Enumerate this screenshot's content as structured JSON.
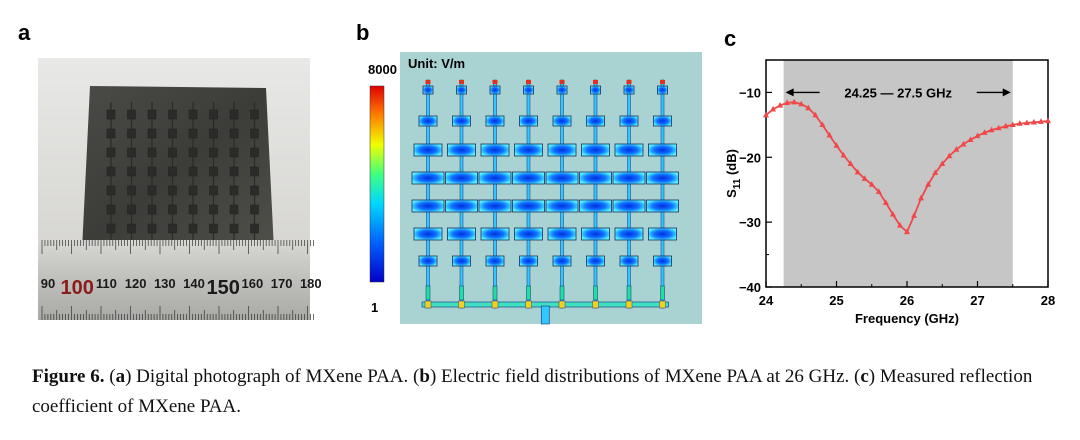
{
  "panels": {
    "a": "a",
    "b": "b",
    "c": "c"
  },
  "photo": {
    "ruler_ticks": [
      "90",
      "100",
      "110",
      "120",
      "130",
      "140",
      "150",
      "160",
      "170",
      "180"
    ]
  },
  "field": {
    "unit_label": "Unit: V/m",
    "scale_max": "8000",
    "scale_min": "1"
  },
  "chart_data": {
    "type": "line",
    "xlabel": "Frequency (GHz)",
    "ylabel_main": "S",
    "ylabel_sub": "11",
    "ylabel_unit": " (dB)",
    "xlim": [
      24,
      28
    ],
    "ylim": [
      -40,
      -5
    ],
    "xticks": [
      "24",
      "25",
      "26",
      "27",
      "28"
    ],
    "yticks": [
      "-10",
      "-20",
      "-30",
      "-40"
    ],
    "band": [
      24.25,
      27.5
    ],
    "band_label": "24.25 — 27.5 GHz",
    "series": [
      {
        "color": "#f04848",
        "x": [
          24.0,
          24.1,
          24.2,
          24.3,
          24.4,
          24.5,
          24.6,
          24.7,
          24.8,
          24.9,
          25.0,
          25.1,
          25.2,
          25.3,
          25.4,
          25.5,
          25.6,
          25.7,
          25.8,
          25.9,
          26.0,
          26.1,
          26.2,
          26.3,
          26.4,
          26.5,
          26.6,
          26.7,
          26.8,
          26.9,
          27.0,
          27.1,
          27.2,
          27.3,
          27.4,
          27.5,
          27.6,
          27.7,
          27.8,
          27.9,
          28.0
        ],
        "y": [
          -13.5,
          -12.6,
          -12.0,
          -11.6,
          -11.5,
          -11.8,
          -12.4,
          -13.5,
          -15.0,
          -16.6,
          -18.2,
          -19.7,
          -21.0,
          -22.3,
          -23.3,
          -24.2,
          -25.3,
          -27.0,
          -28.8,
          -30.5,
          -31.5,
          -29.0,
          -26.3,
          -24.2,
          -22.4,
          -21.0,
          -19.8,
          -18.8,
          -18.0,
          -17.3,
          -16.7,
          -16.2,
          -15.8,
          -15.5,
          -15.2,
          -15.0,
          -14.8,
          -14.7,
          -14.6,
          -14.5,
          -14.4
        ]
      }
    ]
  },
  "caption": {
    "figure": "Figure 6.",
    "p1": " (",
    "a": "a",
    "p2": ") Digital photograph of MXene PAA. (",
    "b": "b",
    "p3": ") Electric field distributions of MXene PAA at 26 GHz. (",
    "c": "c",
    "p4": ") Measured reflection coefficient of MXene PAA."
  }
}
